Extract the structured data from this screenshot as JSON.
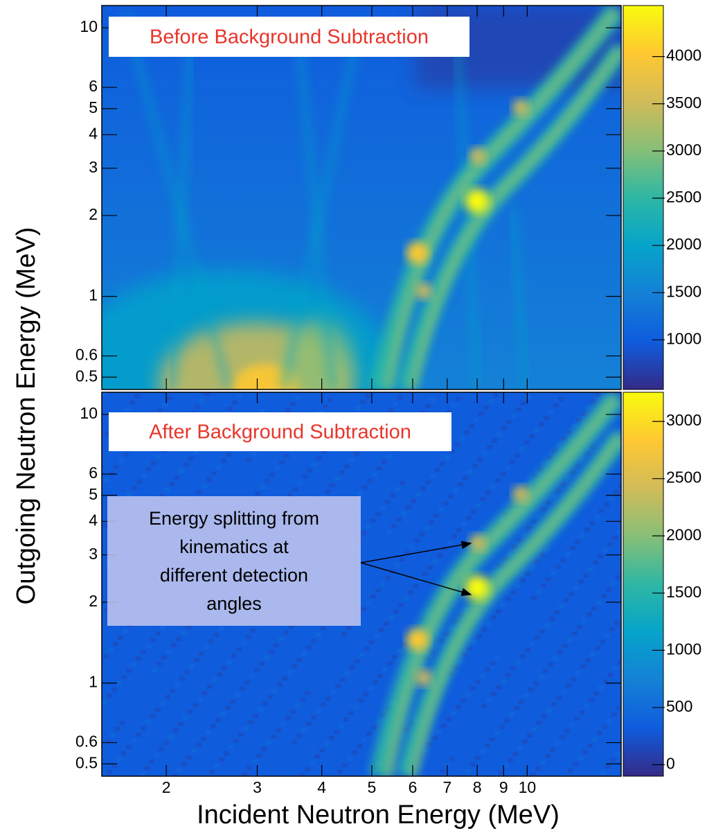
{
  "chart_data": [
    {
      "type": "heatmap",
      "title": "Before Background Subtraction",
      "ylabel": "Outgoing Neutron Energy (MeV)",
      "xscale": "log",
      "yscale": "log",
      "xlim": [
        1.5,
        15.2
      ],
      "xticks": [
        2,
        3,
        4,
        5,
        6,
        7,
        8,
        9,
        10
      ],
      "ylim": [
        0.45,
        12.1
      ],
      "yticks": [
        0.5,
        0.6,
        1,
        2,
        3,
        4,
        5,
        6,
        10
      ],
      "zlim": [
        475,
        4540
      ],
      "zticks": [
        1000,
        1500,
        2000,
        2500,
        3000,
        3500,
        4000
      ],
      "colormap": [
        "#352a87",
        "#0f5cdd",
        "#1481d6",
        "#06a4ca",
        "#2eb7a4",
        "#87bf77",
        "#d1bb59",
        "#fec832",
        "#f9fb0e"
      ]
    },
    {
      "type": "heatmap",
      "title": "After Background Subtraction",
      "xlabel": "Incident Neutron Energy (MeV)",
      "xscale": "log",
      "yscale": "log",
      "xlim": [
        1.5,
        15.2
      ],
      "xticks": [
        2,
        3,
        4,
        5,
        6,
        7,
        8,
        9,
        10
      ],
      "ylim": [
        0.45,
        12.1
      ],
      "yticks": [
        0.5,
        0.6,
        1,
        2,
        3,
        4,
        5,
        6,
        10
      ],
      "zlim": [
        -100,
        3255
      ],
      "zticks": [
        0,
        500,
        1000,
        1500,
        2000,
        2500,
        3000
      ],
      "colormap": [
        "#352a87",
        "#0f5cdd",
        "#1481d6",
        "#06a4ca",
        "#2eb7a4",
        "#87bf77",
        "#d1bb59",
        "#fec832",
        "#f9fb0e"
      ],
      "annotation": [
        "Energy splitting from",
        "kinematics at",
        "different detection",
        "angles"
      ]
    }
  ]
}
